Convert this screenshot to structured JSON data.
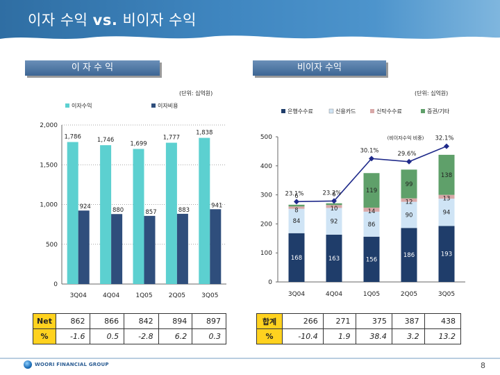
{
  "title": {
    "main": "이자 수익",
    "vs": "vs.",
    "rest": "비이자 수익"
  },
  "left": {
    "section_label": "이 자 수 익",
    "unit": "(단위: 십억원)",
    "table": {
      "rows": [
        {
          "head": "Net",
          "values": [
            "862",
            "866",
            "842",
            "894",
            "897"
          ]
        },
        {
          "head": "%",
          "values": [
            "-1.6",
            "0.5",
            "-2.8",
            "6.2",
            "0.3"
          ]
        }
      ]
    }
  },
  "right": {
    "section_label": "비이자 수익",
    "unit": "(단위: 십억원)",
    "ratio_label": "(비이자수익 비중)",
    "table": {
      "rows": [
        {
          "head": "합계",
          "values": [
            "266",
            "271",
            "375",
            "387",
            "438"
          ]
        },
        {
          "head": "%",
          "values": [
            "-10.4",
            "1.9",
            "38.4",
            "3.2",
            "13.2"
          ]
        }
      ]
    }
  },
  "chart_data": [
    {
      "type": "bar",
      "categories": [
        "3Q04",
        "4Q04",
        "1Q05",
        "2Q05",
        "3Q05"
      ],
      "series": [
        {
          "name": "이자수익",
          "values": [
            1786,
            1746,
            1699,
            1777,
            1838
          ],
          "labels": [
            "1,786",
            "1,746",
            "1,699",
            "1,777",
            "1,838"
          ],
          "color": "#5cd0d0"
        },
        {
          "name": "이자비용",
          "values": [
            924,
            880,
            857,
            883,
            941
          ],
          "labels": [
            "924",
            "880",
            "857",
            "883",
            "941"
          ],
          "color": "#2f4e7c"
        }
      ],
      "ylim": [
        0,
        2000
      ],
      "yticks": [
        0,
        500,
        1000,
        1500,
        2000
      ],
      "ytick_labels": [
        "0",
        "500",
        "1,000",
        "1,500",
        "2,000"
      ],
      "legend": "top-left",
      "grid": true
    },
    {
      "type": "bar",
      "stacked": true,
      "categories": [
        "3Q04",
        "4Q04",
        "1Q05",
        "2Q05",
        "3Q05"
      ],
      "series": [
        {
          "name": "은행수수료",
          "values": [
            168,
            163,
            156,
            186,
            193
          ],
          "color": "#1f3d6a"
        },
        {
          "name": "신용카드",
          "values": [
            84,
            92,
            86,
            90,
            94
          ],
          "color": "#cfe4f5"
        },
        {
          "name": "신탁수수료",
          "values": [
            8,
            10,
            14,
            12,
            13
          ],
          "color": "#d8a8a8"
        },
        {
          "name": "증권/기타",
          "values": [
            6,
            6,
            119,
            99,
            138
          ],
          "color": "#5fa06a"
        }
      ],
      "line": {
        "name": "비이자수익 비중",
        "values": [
          23.1,
          23.2,
          30.1,
          29.6,
          32.1
        ],
        "labels": [
          "23.1%",
          "23.2%",
          "30.1%",
          "29.6%",
          "32.1%"
        ],
        "color": "#1f2a8a"
      },
      "ylim": [
        0,
        500
      ],
      "yticks": [
        0,
        100,
        200,
        300,
        400,
        500
      ],
      "ytick_labels": [
        "0",
        "100",
        "200",
        "300",
        "400",
        "500"
      ],
      "legend": "top"
    }
  ]
}
